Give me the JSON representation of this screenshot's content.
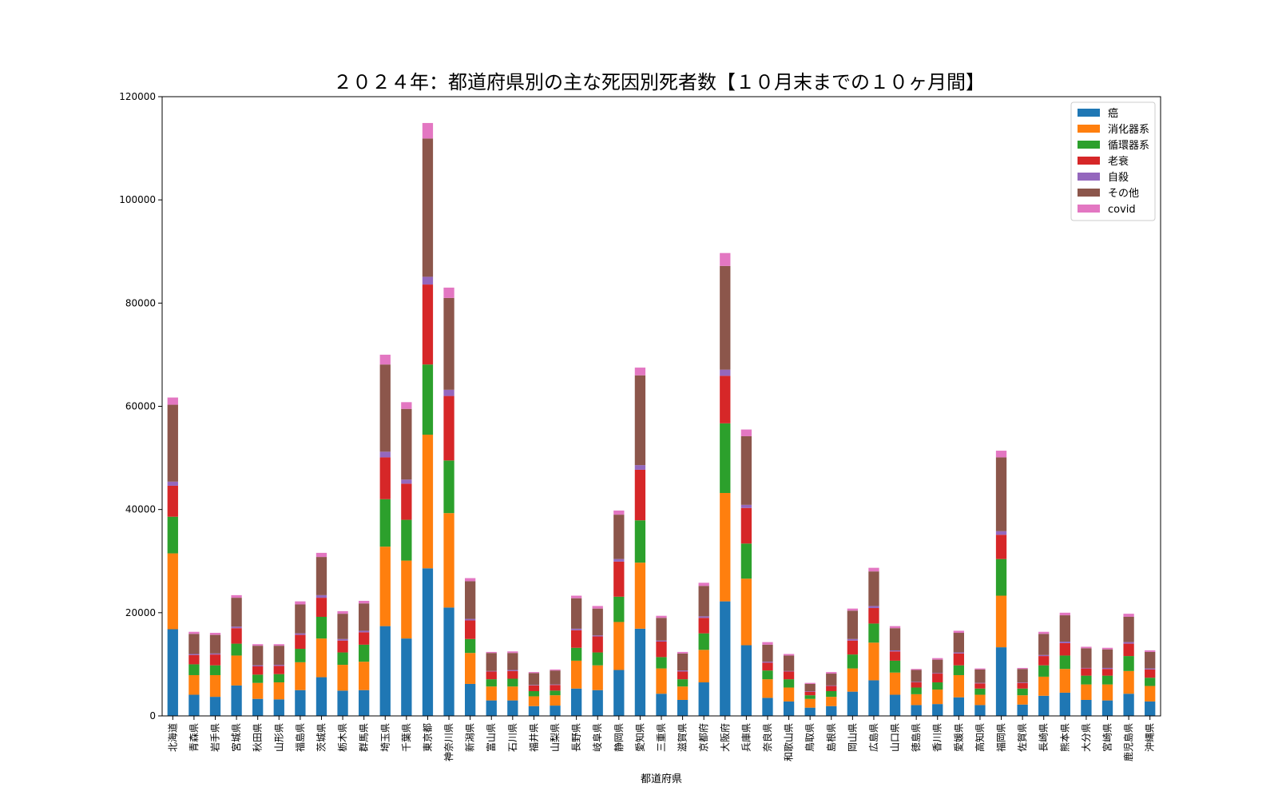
{
  "chart_data": {
    "type": "bar",
    "stacked": true,
    "title": "２０２４年：都道府県別の主な死因別死者数【１０月末までの１０ヶ月間】",
    "xlabel": "都道府県",
    "ylabel": "",
    "ylim": [
      0,
      120000
    ],
    "yticks": [
      "0",
      "20000",
      "40000",
      "60000",
      "80000",
      "100000",
      "120000"
    ],
    "legend_position": "top-right",
    "grid": false,
    "categories": [
      "北海道",
      "青森県",
      "岩手県",
      "宮城県",
      "秋田県",
      "山形県",
      "福島県",
      "茨城県",
      "栃木県",
      "群馬県",
      "埼玉県",
      "千葉県",
      "東京都",
      "神奈川県",
      "新潟県",
      "富山県",
      "石川県",
      "福井県",
      "山梨県",
      "長野県",
      "岐阜県",
      "静岡県",
      "愛知県",
      "三重県",
      "滋賀県",
      "京都府",
      "大阪府",
      "兵庫県",
      "奈良県",
      "和歌山県",
      "鳥取県",
      "島根県",
      "岡山県",
      "広島県",
      "山口県",
      "徳島県",
      "香川県",
      "愛媛県",
      "高知県",
      "福岡県",
      "佐賀県",
      "長崎県",
      "熊本県",
      "大分県",
      "宮崎県",
      "鹿児島県",
      "沖縄県"
    ],
    "series": [
      {
        "name": "癌",
        "color": "#1f77b4",
        "values": [
          16800,
          4100,
          3700,
          5900,
          3300,
          3200,
          5000,
          7500,
          4900,
          5000,
          17400,
          15000,
          28600,
          21000,
          6200,
          3000,
          3000,
          1900,
          2000,
          5300,
          5000,
          8900,
          16900,
          4300,
          3100,
          6500,
          22200,
          13700,
          3500,
          2800,
          1600,
          1900,
          4700,
          6900,
          4100,
          2100,
          2300,
          3600,
          2100,
          13300,
          2200,
          3900,
          4500,
          3100,
          3000,
          4300,
          2800
        ]
      },
      {
        "name": "消化器系",
        "color": "#ff7f0e",
        "values": [
          14700,
          3800,
          4200,
          5800,
          3100,
          3300,
          5400,
          7500,
          5000,
          5500,
          15400,
          15100,
          25900,
          18300,
          6000,
          2700,
          2700,
          1900,
          2000,
          5400,
          4800,
          9300,
          12800,
          4900,
          2600,
          6300,
          21000,
          12900,
          3600,
          2700,
          1700,
          1800,
          4500,
          7300,
          4300,
          2100,
          2800,
          4300,
          2000,
          10000,
          1800,
          3700,
          4600,
          3000,
          3100,
          4400,
          3000
        ]
      },
      {
        "name": "循環器系",
        "color": "#2ca02c",
        "values": [
          7100,
          2100,
          1900,
          2300,
          1600,
          1600,
          2600,
          4200,
          2400,
          3300,
          9200,
          7900,
          13600,
          10200,
          2700,
          1400,
          1500,
          1000,
          900,
          2500,
          2500,
          4900,
          8200,
          2200,
          1400,
          3200,
          13500,
          6800,
          1700,
          1600,
          700,
          1100,
          2700,
          3700,
          2300,
          1300,
          1400,
          1900,
          1200,
          7100,
          1300,
          2200,
          2600,
          1700,
          1700,
          2900,
          1600
        ]
      },
      {
        "name": "老衰",
        "color": "#d62728",
        "values": [
          6000,
          1800,
          2100,
          3000,
          1600,
          1600,
          2700,
          3700,
          2300,
          2400,
          8100,
          7000,
          15500,
          12500,
          3600,
          1500,
          1500,
          1100,
          1100,
          3400,
          3100,
          6800,
          9800,
          3000,
          1500,
          3000,
          9200,
          6900,
          1500,
          1500,
          700,
          1000,
          2700,
          3000,
          1800,
          1000,
          1700,
          2300,
          1000,
          4700,
          1100,
          1800,
          2400,
          1400,
          1300,
          2400,
          1600
        ]
      },
      {
        "name": "自殺",
        "color": "#9467bd",
        "values": [
          800,
          200,
          200,
          300,
          200,
          200,
          300,
          500,
          300,
          300,
          1100,
          800,
          1500,
          1200,
          300,
          100,
          200,
          100,
          100,
          300,
          200,
          500,
          900,
          200,
          200,
          300,
          1200,
          600,
          200,
          100,
          100,
          100,
          300,
          400,
          200,
          100,
          100,
          200,
          100,
          700,
          100,
          200,
          300,
          100,
          200,
          300,
          200
        ]
      },
      {
        "name": "その他",
        "color": "#8c564b",
        "values": [
          14900,
          3900,
          3600,
          5600,
          3800,
          3700,
          5600,
          7400,
          4900,
          5300,
          16900,
          13700,
          26800,
          17800,
          7300,
          3500,
          3300,
          2300,
          2700,
          5900,
          5200,
          8600,
          17400,
          4400,
          3300,
          5900,
          20100,
          13300,
          3300,
          3000,
          1400,
          2300,
          5500,
          6700,
          4300,
          2300,
          2600,
          3800,
          2600,
          14300,
          2600,
          4100,
          5100,
          3800,
          3600,
          4900,
          3200
        ]
      },
      {
        "name": "covid",
        "color": "#e377c2",
        "values": [
          1400,
          400,
          400,
          500,
          300,
          300,
          600,
          800,
          500,
          500,
          1900,
          1300,
          3000,
          2000,
          600,
          200,
          300,
          200,
          200,
          500,
          500,
          800,
          1500,
          400,
          300,
          600,
          2500,
          1300,
          500,
          300,
          200,
          300,
          400,
          700,
          400,
          200,
          300,
          400,
          200,
          1300,
          200,
          400,
          500,
          300,
          300,
          600,
          300
        ]
      }
    ]
  }
}
